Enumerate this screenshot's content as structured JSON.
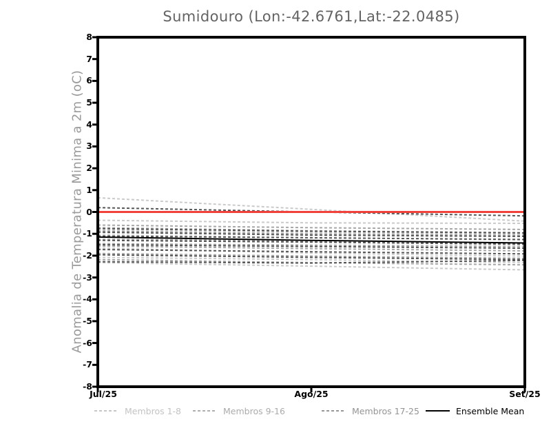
{
  "chart_data": {
    "type": "line",
    "title": "Sumidouro (Lon:-42.6761,Lat:-22.0485)",
    "xlabel": "",
    "ylabel": "Anomalia de Temperatura Minima a 2m (oC)",
    "ylim": [
      -8,
      8
    ],
    "grid": false,
    "legend_position": "bottom",
    "y_ticks": [
      8,
      7,
      6,
      5,
      4,
      3,
      2,
      1,
      0,
      -1,
      -2,
      -3,
      -4,
      -5,
      -6,
      -7,
      -8
    ],
    "x_ticks": [
      {
        "label": "Jul/25",
        "t": 0
      },
      {
        "label": "Ago/25",
        "t": 0.5
      },
      {
        "label": "Set/25",
        "t": 1
      }
    ],
    "categories": [
      "Jul/25",
      "Ago/25",
      "Set/25"
    ],
    "zero_line": {
      "value": 0,
      "color": "#f2413a"
    },
    "groups": [
      {
        "name": "Membros 1-8",
        "color": "#cacaca",
        "dashed": true,
        "members": [
          [
            0.65,
            0.12,
            -0.42
          ],
          [
            -0.38,
            -0.5,
            -0.52
          ],
          [
            -0.78,
            -0.92,
            -1.02
          ],
          [
            -0.95,
            -1.03,
            -1.08
          ],
          [
            -1.05,
            -1.18,
            -1.28
          ],
          [
            -1.65,
            -1.88,
            -2.02
          ],
          [
            -2.08,
            -2.18,
            -2.32
          ],
          [
            -2.32,
            -2.48,
            -2.65
          ]
        ]
      },
      {
        "name": "Membros 9-16",
        "color": "#a6a6a6",
        "dashed": true,
        "members": [
          [
            -0.6,
            -0.72,
            -0.8
          ],
          [
            -0.72,
            -0.86,
            -0.95
          ],
          [
            -0.86,
            -1.0,
            -1.08
          ],
          [
            -1.25,
            -1.33,
            -1.42
          ],
          [
            -1.45,
            -1.52,
            -1.58
          ],
          [
            -1.56,
            -1.68,
            -1.78
          ],
          [
            -1.9,
            -2.02,
            -2.12
          ],
          [
            -2.18,
            -2.32,
            -2.42
          ]
        ]
      },
      {
        "name": "Membros 17-25",
        "color": "#565656",
        "dashed": true,
        "members": [
          [
            0.2,
            0.0,
            -0.18
          ],
          [
            -0.76,
            -0.88,
            -0.96
          ],
          [
            -0.92,
            -1.06,
            -1.12
          ],
          [
            -1.1,
            -1.18,
            -1.26
          ],
          [
            -1.3,
            -1.38,
            -1.48
          ],
          [
            -1.5,
            -1.58,
            -1.66
          ],
          [
            -1.72,
            -1.82,
            -1.92
          ],
          [
            -1.96,
            -2.08,
            -2.18
          ],
          [
            -2.28,
            -2.34,
            -2.22
          ]
        ]
      }
    ],
    "mean": {
      "label": "Ensemble Mean",
      "color": "#000000",
      "values": [
        -1.15,
        -1.3,
        -1.42
      ]
    },
    "legend": [
      {
        "label": "Membros 1-8",
        "line_color": "#c6c6c6",
        "text_color": "#c3c3c3",
        "dashed": true
      },
      {
        "label": "Membros 9-16",
        "line_color": "#aeaeae",
        "text_color": "#ababab",
        "dashed": true
      },
      {
        "label": "Membros 17-25",
        "line_color": "#979797",
        "text_color": "#949494",
        "dashed": true
      },
      {
        "label": "Ensemble Mean",
        "line_color": "#000000",
        "text_color": "#000000",
        "dashed": false
      }
    ],
    "axis_color": "#000000"
  }
}
